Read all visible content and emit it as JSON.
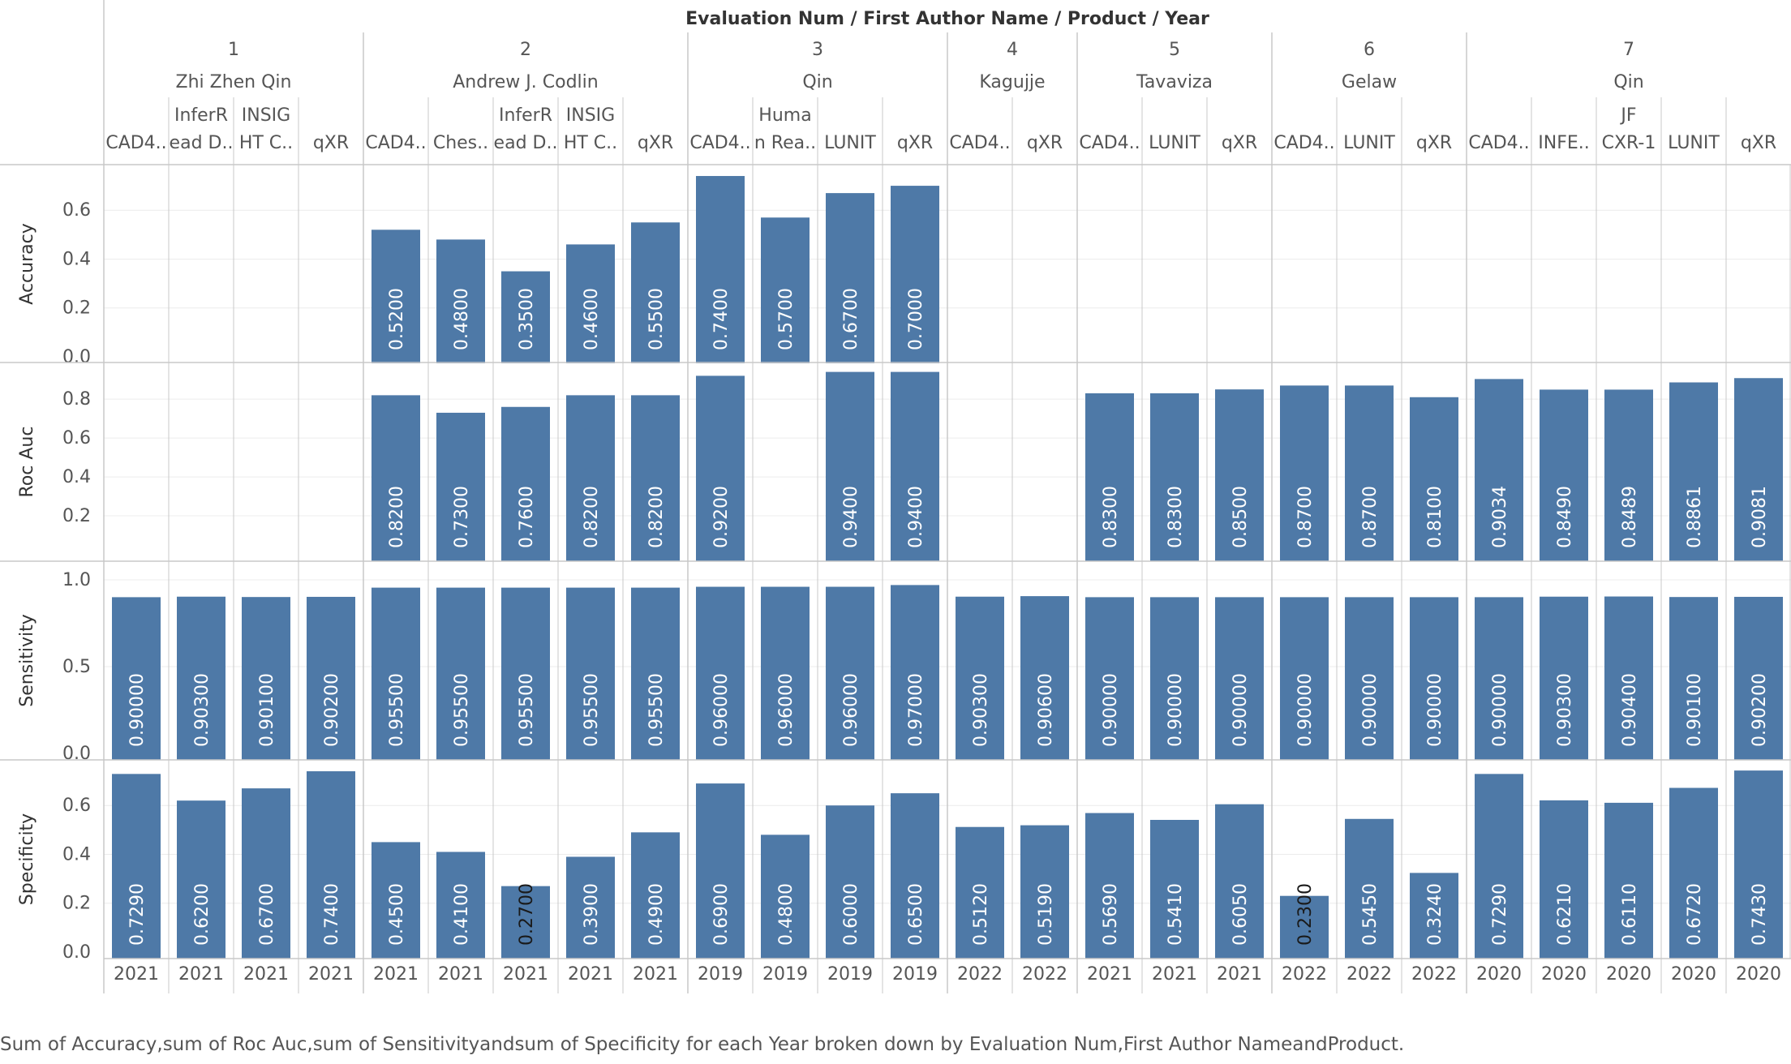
{
  "header_title": "Evaluation Num  /  First Author Name  /  Product  /  Year",
  "footer_caption": "Sum of Accuracy,sum of Roc Auc,sum of Sensitivityandsum of Specificity for each Year broken down by Evaluation Num,First Author NameandProduct.",
  "colors": {
    "bar": "#4e79a7",
    "bar_label": "#ffffff",
    "grid": "#ececec",
    "divider": "#c8c8c8",
    "text": "#555555"
  },
  "chart_data": {
    "type": "bar",
    "groups": [
      {
        "num": "1",
        "author": "Zhi Zhen Qin",
        "columns": [
          {
            "product": [
              "CAD4.."
            ],
            "year": "2021"
          },
          {
            "product": [
              "InferR",
              "ead D.."
            ],
            "year": "2021"
          },
          {
            "product": [
              "INSIG",
              "HT C.."
            ],
            "year": "2021"
          },
          {
            "product": [
              "qXR"
            ],
            "year": "2021"
          }
        ]
      },
      {
        "num": "2",
        "author": "Andrew J. Codlin",
        "columns": [
          {
            "product": [
              "CAD4.."
            ],
            "year": "2021"
          },
          {
            "product": [
              "Ches.."
            ],
            "year": "2021"
          },
          {
            "product": [
              "InferR",
              "ead D.."
            ],
            "year": "2021"
          },
          {
            "product": [
              "INSIG",
              "HT C.."
            ],
            "year": "2021"
          },
          {
            "product": [
              "qXR"
            ],
            "year": "2021"
          }
        ]
      },
      {
        "num": "3",
        "author": "Qin",
        "columns": [
          {
            "product": [
              "CAD4.."
            ],
            "year": "2019"
          },
          {
            "product": [
              "Huma",
              "n Rea.."
            ],
            "year": "2019"
          },
          {
            "product": [
              "LUNIT"
            ],
            "year": "2019"
          },
          {
            "product": [
              "qXR"
            ],
            "year": "2019"
          }
        ]
      },
      {
        "num": "4",
        "author": "Kagujje",
        "columns": [
          {
            "product": [
              "CAD4.."
            ],
            "year": "2022"
          },
          {
            "product": [
              "qXR"
            ],
            "year": "2022"
          }
        ]
      },
      {
        "num": "5",
        "author": "Tavaviza",
        "columns": [
          {
            "product": [
              "CAD4.."
            ],
            "year": "2021"
          },
          {
            "product": [
              "LUNIT"
            ],
            "year": "2021"
          },
          {
            "product": [
              "qXR"
            ],
            "year": "2021"
          }
        ]
      },
      {
        "num": "6",
        "author": "Gelaw",
        "columns": [
          {
            "product": [
              "CAD4.."
            ],
            "year": "2022"
          },
          {
            "product": [
              "LUNIT"
            ],
            "year": "2022"
          },
          {
            "product": [
              "qXR"
            ],
            "year": "2022"
          }
        ]
      },
      {
        "num": "7",
        "author": "Qin",
        "columns": [
          {
            "product": [
              "CAD4.."
            ],
            "year": "2020"
          },
          {
            "product": [
              "INFE.."
            ],
            "year": "2020"
          },
          {
            "product": [
              "JF",
              "CXR-1"
            ],
            "year": "2020"
          },
          {
            "product": [
              "LUNIT"
            ],
            "year": "2020"
          },
          {
            "product": [
              "qXR"
            ],
            "year": "2020"
          }
        ]
      }
    ],
    "measures": [
      {
        "name": "Accuracy",
        "ylim": [
          0,
          0.76
        ],
        "ticks": [
          "0.0",
          "0.2",
          "0.4",
          "0.6"
        ],
        "values": [
          null,
          null,
          null,
          null,
          0.52,
          0.48,
          0.35,
          0.46,
          0.55,
          0.74,
          0.57,
          0.67,
          0.7,
          null,
          null,
          null,
          null,
          null,
          null,
          null,
          null,
          null,
          null,
          null,
          null,
          null
        ],
        "labels": [
          "",
          "",
          "",
          "",
          "0.5200",
          "0.4800",
          "0.3500",
          "0.4600",
          "0.5500",
          "0.7400",
          "0.5700",
          "0.6700",
          "0.7000",
          "",
          "",
          "",
          "",
          "",
          "",
          "",
          "",
          "",
          "",
          "",
          "",
          ""
        ]
      },
      {
        "name": "Roc Auc",
        "ylim": [
          0,
          0.955
        ],
        "ticks": [
          "0.2",
          "0.4",
          "0.6",
          "0.8"
        ],
        "values": [
          null,
          null,
          null,
          null,
          0.82,
          0.73,
          0.76,
          0.82,
          0.82,
          0.92,
          null,
          0.94,
          0.94,
          null,
          null,
          0.83,
          0.83,
          0.85,
          0.87,
          0.87,
          0.81,
          0.9034,
          0.849,
          0.8489,
          0.8861,
          0.9081
        ],
        "labels": [
          "",
          "",
          "",
          "",
          "0.8200",
          "0.7300",
          "0.7600",
          "0.8200",
          "0.8200",
          "0.9200",
          "",
          "0.9400",
          "0.9400",
          "",
          "",
          "0.8300",
          "0.8300",
          "0.8500",
          "0.8700",
          "0.8700",
          "0.8100",
          "0.9034",
          "0.8490",
          "0.8489",
          "0.8861",
          "0.9081"
        ]
      },
      {
        "name": "Sensitivity",
        "ylim": [
          0,
          1.07
        ],
        "ticks": [
          "0.0",
          "0.5",
          "1.0"
        ],
        "values": [
          0.9,
          0.903,
          0.901,
          0.902,
          0.955,
          0.955,
          0.955,
          0.955,
          0.955,
          0.96,
          0.96,
          0.96,
          0.97,
          0.903,
          0.906,
          0.9,
          0.9,
          0.9,
          0.9,
          0.9,
          0.9,
          0.9,
          0.903,
          0.904,
          0.901,
          0.902
        ],
        "labels": [
          "0.90000",
          "0.90300",
          "0.90100",
          "0.90200",
          "0.95500",
          "0.95500",
          "0.95500",
          "0.95500",
          "0.95500",
          "0.96000",
          "0.96000",
          "0.96000",
          "0.97000",
          "0.90300",
          "0.90600",
          "0.90000",
          "0.90000",
          "0.90000",
          "0.90000",
          "0.90000",
          "0.90000",
          "0.90000",
          "0.90300",
          "0.90400",
          "0.90100",
          "0.90200"
        ]
      },
      {
        "name": "Specificity",
        "ylim": [
          0,
          0.76
        ],
        "ticks": [
          "0.0",
          "0.2",
          "0.4",
          "0.6"
        ],
        "values": [
          0.729,
          0.62,
          0.67,
          0.74,
          0.45,
          0.41,
          0.27,
          0.39,
          0.49,
          0.69,
          0.48,
          0.6,
          0.65,
          0.512,
          0.519,
          0.569,
          0.541,
          0.605,
          0.23,
          0.545,
          0.324,
          0.729,
          0.621,
          0.611,
          0.672,
          0.743
        ],
        "labels": [
          "0.7290",
          "0.6200",
          "0.6700",
          "0.7400",
          "0.4500",
          "0.4100",
          "0.2700",
          "0.3900",
          "0.4900",
          "0.6900",
          "0.4800",
          "0.6000",
          "0.6500",
          "0.5120",
          "0.5190",
          "0.5690",
          "0.5410",
          "0.6050",
          "0.2300",
          "0.5450",
          "0.3240",
          "0.7290",
          "0.6210",
          "0.6110",
          "0.6720",
          "0.7430"
        ]
      }
    ]
  }
}
